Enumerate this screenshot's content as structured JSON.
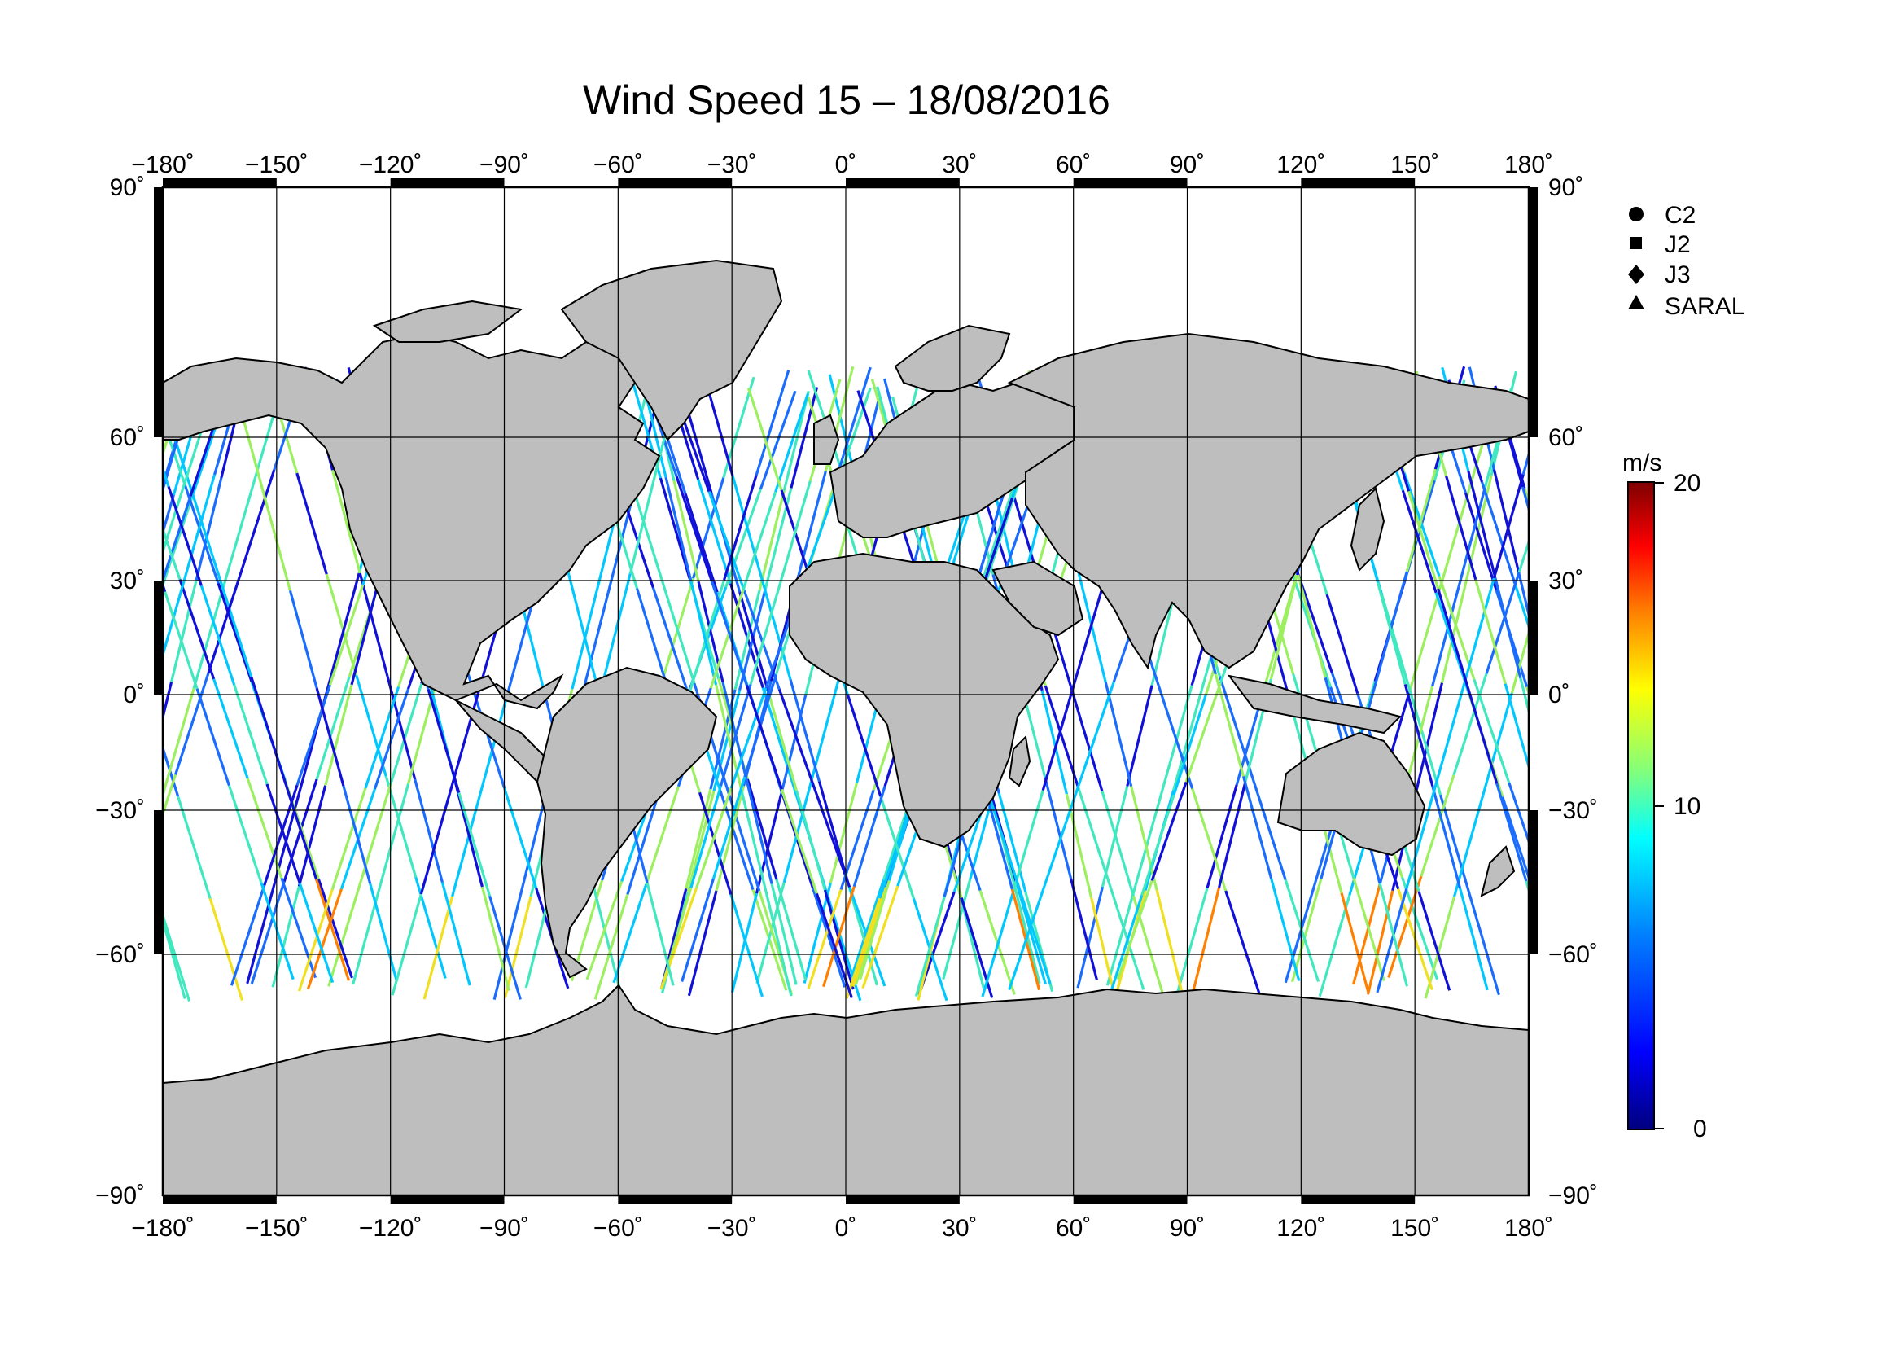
{
  "title": "Wind Speed 15 – 18/08/2016",
  "axes": {
    "lon_ticks": [
      "−180˚",
      "−150˚",
      "−120˚",
      "−90˚",
      "−60˚",
      "−30˚",
      "0˚",
      "30˚",
      "60˚",
      "90˚",
      "120˚",
      "150˚",
      "180˚"
    ],
    "lat_ticks": [
      "90˚",
      "60˚",
      "30˚",
      "0˚",
      "−30˚",
      "−60˚",
      "−90˚"
    ]
  },
  "map": {
    "projection": "Mercator-like, lon −180 to 180",
    "land_color": "#bebebe",
    "ocean_color": "#ffffff",
    "grid": true
  },
  "legend": {
    "satellites": [
      {
        "label": "C2",
        "marker": "circle"
      },
      {
        "label": "J2",
        "marker": "square"
      },
      {
        "label": "J3",
        "marker": "diamond"
      },
      {
        "label": "SARAL",
        "marker": "triangle"
      }
    ]
  },
  "colorbar": {
    "unit": "m/s",
    "min": 0,
    "max": 20,
    "ticks": [
      "20",
      "10",
      "0"
    ],
    "colors": [
      "#00007f",
      "#0000ff",
      "#007fff",
      "#00ffff",
      "#7fff7f",
      "#ffff00",
      "#ff7f00",
      "#ff0000",
      "#7f0000"
    ]
  },
  "tracks": {
    "note_colors": [
      "#1010d8",
      "#1a6cff",
      "#00c8ff",
      "#40e8c0",
      "#9cf060",
      "#f0e020",
      "#ff8000",
      "#e02000"
    ]
  }
}
